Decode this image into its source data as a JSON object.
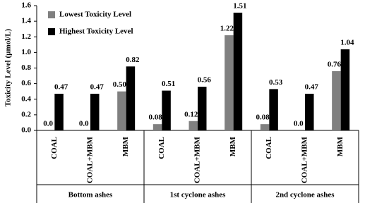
{
  "chart_data": {
    "type": "bar",
    "y_label": "Toxicity Level (µmol/L)",
    "group_labels": [
      "Bottom ashes",
      "1st cyclone ashes",
      "2nd cyclone ashes"
    ],
    "categories": [
      "COAL",
      "COAL+MBM",
      "MBM",
      "COAL",
      "COAL+MBM",
      "MBM",
      "COAL",
      "COAL+MBM",
      "MBM"
    ],
    "series": [
      {
        "name": "Lowest Toxicity Level",
        "color": "#808080",
        "values": [
          0,
          0,
          0.5,
          0.08,
          0.12,
          1.22,
          0.08,
          0,
          0.76
        ],
        "value_labels": [
          "0.0",
          "0.0",
          "0.50",
          "0.08",
          "0.12",
          "1.22",
          "0.08",
          "0.0",
          "0.76"
        ]
      },
      {
        "name": "Highest Toxicity Level",
        "color": "#000000",
        "values": [
          0.47,
          0.47,
          0.82,
          0.51,
          0.56,
          1.51,
          0.53,
          0.47,
          1.04
        ],
        "value_labels": [
          "0.47",
          "0.47",
          "0.82",
          "0.51",
          "0.56",
          "1.51",
          "0.53",
          "0.47",
          "1.04"
        ]
      }
    ],
    "ylim": [
      0,
      1.6
    ],
    "yticks": [
      {
        "value": 0,
        "label": "0.0"
      },
      0.2,
      0.4,
      0.6,
      0.8,
      {
        "value": 1,
        "label": "1.0"
      },
      1.2,
      1.4,
      1.6
    ],
    "legend": "top-left"
  }
}
